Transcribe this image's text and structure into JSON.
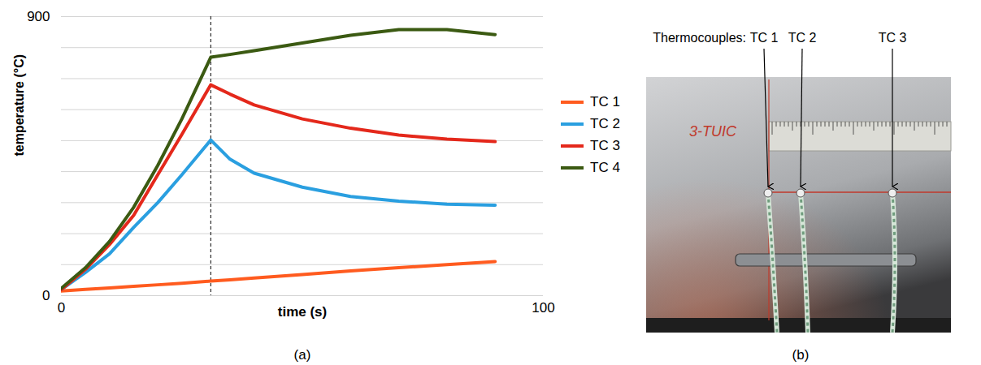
{
  "chart_data": {
    "type": "line",
    "caption": "(a)",
    "xlabel": "time (s)",
    "ylabel": "temperature (°C)",
    "x": [
      0,
      5,
      10,
      15,
      20,
      25,
      31,
      35,
      40,
      50,
      60,
      70,
      80,
      90
    ],
    "series": [
      {
        "name": "TC 1",
        "color": "#ff5b1f",
        "values": [
          15,
          20,
          25,
          30,
          35,
          40,
          47,
          51,
          57,
          68,
          80,
          90,
          100,
          110
        ]
      },
      {
        "name": "TC 2",
        "color": "#2a9fe0",
        "values": [
          20,
          75,
          135,
          220,
          300,
          390,
          502,
          440,
          395,
          350,
          320,
          305,
          295,
          292
        ]
      },
      {
        "name": "TC 3",
        "color": "#e4281b",
        "values": [
          20,
          85,
          165,
          259,
          390,
          520,
          680,
          650,
          615,
          570,
          540,
          518,
          505,
          497
        ]
      },
      {
        "name": "TC 4",
        "color": "#3b5a12",
        "values": [
          24,
          90,
          175,
          285,
          420,
          570,
          769,
          778,
          790,
          815,
          840,
          858,
          858,
          842
        ]
      }
    ],
    "xlim": [
      0,
      100
    ],
    "xticks": [
      0,
      100
    ],
    "ylim": [
      0,
      900
    ],
    "yticks": [
      0,
      {
        "value": 100,
        "label": null
      },
      {
        "value": 200,
        "label": null
      },
      {
        "value": 300,
        "label": null
      },
      {
        "value": 400,
        "label": null
      },
      {
        "value": 500,
        "label": null
      },
      {
        "value": 600,
        "label": null
      },
      {
        "value": 700,
        "label": null
      },
      {
        "value": 800,
        "label": null
      },
      900
    ],
    "grid": true,
    "legend": "right",
    "vline_x": 31
  },
  "panel_b": {
    "caption": "(b)",
    "heading": "Thermocouples:",
    "thermocouples": [
      "TC 1",
      "TC 2",
      "TC 3"
    ],
    "plate_marking": "3-TUIC"
  }
}
